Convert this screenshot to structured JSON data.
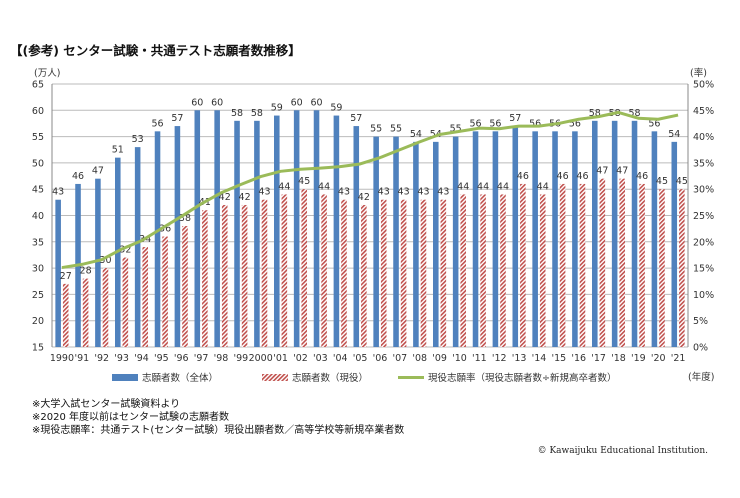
{
  "title": "【(参考) センター試験・共通テスト志願者数推移】",
  "notes": [
    "※大学入試センター試験資料より",
    "※2020 年度以前はセンター試験の志願者数",
    "※現役志願率：共通テスト(センター試験）現役出願者数／高等学校等新規卒業者数"
  ],
  "copyright": "© Kawaijuku Educational Institution.",
  "chart_data": {
    "type": "bar",
    "categories": [
      "1990",
      "'91",
      "'92",
      "'93",
      "'94",
      "'95",
      "'96",
      "'97",
      "'98",
      "'99",
      "2000",
      "'01",
      "'02",
      "'03",
      "'04",
      "'05",
      "'06",
      "'07",
      "'08",
      "'09",
      "'10",
      "'11",
      "'12",
      "'13",
      "'14",
      "'15",
      "'16",
      "'17",
      "'18",
      "'19",
      "'20",
      "'21"
    ],
    "ylabel": "(万人)",
    "y2label": "(率)",
    "xlabel": "(年度)",
    "ylim": [
      15,
      65
    ],
    "yticks": [
      15,
      20,
      25,
      30,
      35,
      40,
      45,
      50,
      55,
      60,
      65
    ],
    "y2lim": [
      0,
      50
    ],
    "y2ticks": [
      "0%",
      "5%",
      "10%",
      "15%",
      "20%",
      "25%",
      "30%",
      "35%",
      "40%",
      "45%",
      "50%"
    ],
    "grid": true,
    "legend_position": "bottom",
    "series": [
      {
        "name": "志願者数（全体）",
        "type": "bar",
        "color": "#4F81BD",
        "values": [
          43,
          46,
          47,
          51,
          53,
          56,
          57,
          60,
          60,
          58,
          58,
          59,
          60,
          60,
          59,
          57,
          55,
          55,
          54,
          54,
          55,
          56,
          56,
          57,
          56,
          56,
          56,
          58,
          58,
          58,
          56,
          54
        ]
      },
      {
        "name": "志願者数（現役）",
        "type": "bar",
        "pattern": "hatched",
        "color": "#C0504D",
        "values": [
          27,
          28,
          30,
          32,
          34,
          36,
          38,
          41,
          42,
          42,
          43,
          44,
          45,
          44,
          43,
          42,
          43,
          43,
          43,
          43,
          44,
          44,
          44,
          46,
          44,
          46,
          46,
          47,
          47,
          46,
          45,
          45
        ]
      },
      {
        "name": "現役志願率（現役志願者数÷新規高卒者数）",
        "type": "line",
        "axis": "right",
        "color": "#9BBB59",
        "values": [
          15.1,
          15.7,
          16.6,
          18.6,
          20.2,
          22.5,
          24.8,
          27.2,
          29.3,
          30.9,
          32.4,
          33.4,
          33.8,
          34.0,
          34.3,
          34.8,
          36.0,
          37.5,
          39.0,
          40.4,
          41.0,
          41.6,
          41.5,
          42.0,
          42.0,
          42.5,
          43.3,
          43.8,
          44.6,
          43.5,
          43.3,
          44.1
        ]
      }
    ]
  }
}
